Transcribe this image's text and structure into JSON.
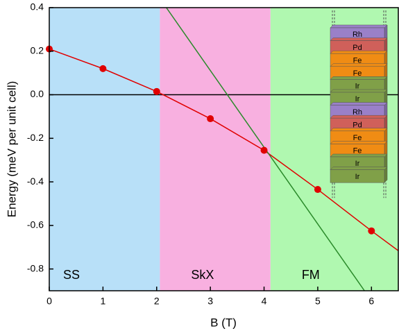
{
  "chart_data": {
    "type": "scatter",
    "xlabel": "B (T)",
    "ylabel": "Energy (meV per unit cell)",
    "xlim": [
      0,
      6.5
    ],
    "ylim": [
      -0.9,
      0.4
    ],
    "xticks": [
      0,
      1,
      2,
      3,
      4,
      5,
      6
    ],
    "yticks": [
      0.4,
      0.2,
      {
        "value": 0,
        "label": "0.0"
      },
      -0.2,
      -0.4,
      -0.6,
      -0.8
    ],
    "regions": [
      {
        "name": "SS",
        "range": [
          0,
          2.06
        ],
        "color": "#b8e0f8"
      },
      {
        "name": "SkX",
        "range": [
          2.06,
          4.12
        ],
        "color": "#f8b0e0"
      },
      {
        "name": "FM",
        "range": [
          4.12,
          6.5
        ],
        "color": "#b0f8b0"
      }
    ],
    "hline": 0,
    "lines": [
      {
        "color": "#e00000",
        "x": [
          0,
          1,
          2,
          3,
          4,
          5,
          6,
          6.5
        ],
        "values": [
          0.21,
          0.12,
          0.015,
          -0.11,
          -0.255,
          -0.435,
          -0.625,
          -0.716
        ]
      },
      {
        "color": "#2a8a2a",
        "x": [
          2.18,
          5.87
        ],
        "values": [
          0.4,
          -0.9
        ]
      }
    ],
    "series": [
      {
        "color": "#e00000",
        "x": [
          0,
          1,
          2,
          3,
          4,
          5,
          6
        ],
        "values": [
          0.21,
          0.12,
          0.015,
          -0.11,
          -0.255,
          -0.435,
          -0.625
        ]
      }
    ],
    "inset": {
      "layers": [
        {
          "label": "Rh",
          "color": "#9a80c8"
        },
        {
          "label": "Pd",
          "color": "#d0605a"
        },
        {
          "label": "Fe",
          "color": "#f08c14"
        },
        {
          "label": "Fe",
          "color": "#f08c14"
        },
        {
          "label": "Ir",
          "color": "#80a048"
        },
        {
          "label": "Ir",
          "color": "#80a048"
        },
        {
          "label": "Rh",
          "color": "#9a80c8"
        },
        {
          "label": "Pd",
          "color": "#d0605a"
        },
        {
          "label": "Fe",
          "color": "#f08c14"
        },
        {
          "label": "Fe",
          "color": "#f08c14"
        },
        {
          "label": "Ir",
          "color": "#80a048"
        },
        {
          "label": "Ir",
          "color": "#80a048"
        }
      ]
    }
  }
}
